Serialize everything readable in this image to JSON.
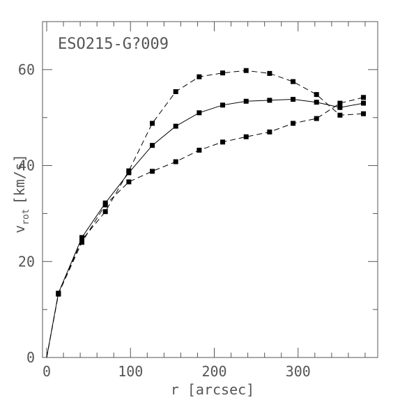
{
  "chart_data": {
    "type": "line",
    "title": "ESO215-G?009",
    "xlabel": "r [arcsec]",
    "ylabel_main": "v",
    "ylabel_sub": "rot",
    "ylabel_unit": "[km/s]",
    "xlim": [
      -5,
      395
    ],
    "ylim": [
      0,
      70
    ],
    "x_ticks": [
      0,
      100,
      200,
      300
    ],
    "y_ticks": [
      0,
      20,
      40,
      60
    ],
    "x_minor_step": 20,
    "y_minor_step": 10,
    "grid": false,
    "colors": {
      "line": "#000000",
      "frame": "#555555",
      "text": "#555555",
      "background": "#ffffff"
    },
    "series": [
      {
        "style": "solid",
        "x": [
          0,
          14,
          42,
          70,
          98,
          126,
          154,
          182,
          210,
          238,
          266,
          294,
          322,
          350,
          378
        ],
        "y": [
          0,
          13.4,
          25.0,
          32.2,
          38.5,
          44.2,
          48.2,
          51.0,
          52.6,
          53.4,
          53.6,
          53.8,
          53.2,
          52.1,
          53.0
        ]
      },
      {
        "style": "dashed",
        "x": [
          0,
          14,
          42,
          70,
          98,
          126,
          154,
          182,
          210,
          238,
          266,
          294,
          322,
          350,
          378
        ],
        "y": [
          0,
          13.2,
          24.5,
          30.4,
          38.9,
          48.8,
          55.4,
          58.5,
          59.3,
          59.8,
          59.2,
          57.5,
          54.8,
          50.5,
          50.8
        ]
      },
      {
        "style": "dashed",
        "x": [
          0,
          14,
          42,
          70,
          98,
          126,
          154,
          182,
          210,
          238,
          266,
          294,
          322,
          350,
          378
        ],
        "y": [
          0,
          13.3,
          24.0,
          31.8,
          36.6,
          38.8,
          40.8,
          43.2,
          44.9,
          46.0,
          47.0,
          48.8,
          49.8,
          53.0,
          54.2
        ]
      }
    ]
  }
}
